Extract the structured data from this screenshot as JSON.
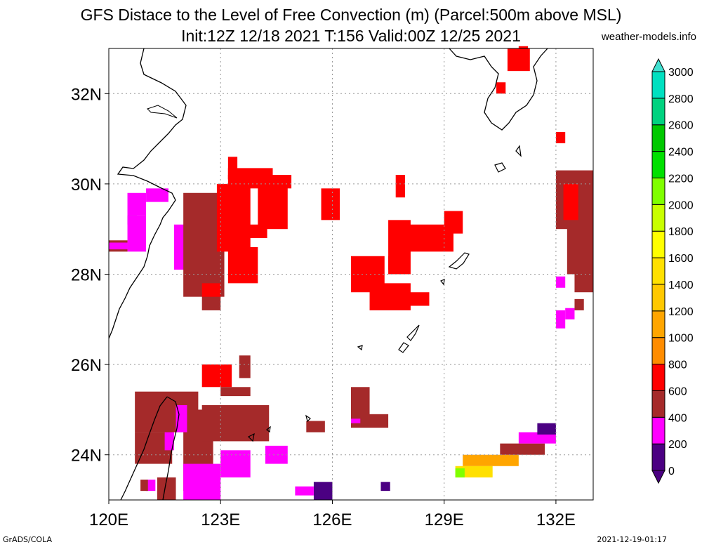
{
  "header": {
    "title_line1": "GFS Distace to the Level of Free Convection (m) (Parcel:500m above MSL)",
    "title_line2": "Init:12Z 12/18 2021 T:156 Valid:00Z 12/25 2021",
    "credit": "weather-models.info"
  },
  "footer": {
    "left": "GrADS/COLA",
    "right": "2021-12-19-01:17"
  },
  "map": {
    "lon_labels": [
      "120E",
      "123E",
      "126E",
      "129E",
      "132E"
    ],
    "lat_labels": [
      "32N",
      "30N",
      "28N",
      "26N",
      "24N"
    ],
    "coastline_color": "#000000",
    "grid_color": "#999999"
  },
  "colorbar": {
    "labels": [
      "0",
      "200",
      "400",
      "600",
      "800",
      "1000",
      "1200",
      "1400",
      "1600",
      "1800",
      "2000",
      "2200",
      "2400",
      "2600",
      "2800",
      "3000"
    ],
    "colors": [
      "#4b0082",
      "#ff00ff",
      "#a52a2a",
      "#ff0000",
      "#ff8c00",
      "#ffa500",
      "#ffc800",
      "#ffe000",
      "#ffff00",
      "#c8ff00",
      "#7fff00",
      "#00e000",
      "#00c800",
      "#00d27f",
      "#00e0c0",
      "#00ffe6"
    ],
    "top_arrow_color": "#40e0d0",
    "bottom_arrow_color": "#4b0082"
  },
  "field": {
    "cells": [
      {
        "lon": 121.0,
        "lat": 29.6,
        "w": 0.6,
        "h": 0.3,
        "v": "magenta"
      },
      {
        "lon": 120.5,
        "lat": 29.3,
        "w": 0.5,
        "h": 0.5,
        "v": "magenta"
      },
      {
        "lon": 120.5,
        "lat": 29.1,
        "w": 0.25,
        "h": 0.2,
        "v": "indigo"
      },
      {
        "lon": 120.5,
        "lat": 28.5,
        "w": 0.5,
        "h": 0.8,
        "v": "magenta"
      },
      {
        "lon": 120.0,
        "lat": 28.5,
        "w": 0.5,
        "h": 0.25,
        "v": "brown"
      },
      {
        "lon": 120.0,
        "lat": 28.55,
        "w": 0.5,
        "h": 0.15,
        "v": "magenta"
      },
      {
        "lon": 121.75,
        "lat": 28.1,
        "w": 0.6,
        "h": 1.0,
        "v": "magenta"
      },
      {
        "lon": 122.0,
        "lat": 27.5,
        "w": 1.1,
        "h": 2.3,
        "v": "brown"
      },
      {
        "lon": 122.5,
        "lat": 27.2,
        "w": 0.5,
        "h": 0.4,
        "v": "brown"
      },
      {
        "lon": 122.9,
        "lat": 28.5,
        "w": 0.9,
        "h": 1.5,
        "v": "red"
      },
      {
        "lon": 123.2,
        "lat": 27.8,
        "w": 0.8,
        "h": 0.8,
        "v": "red"
      },
      {
        "lon": 123.2,
        "lat": 29.9,
        "w": 1.7,
        "h": 0.3,
        "v": "red"
      },
      {
        "lon": 124.0,
        "lat": 29.0,
        "w": 0.8,
        "h": 1.0,
        "v": "red"
      },
      {
        "lon": 123.5,
        "lat": 28.8,
        "w": 0.75,
        "h": 0.3,
        "v": "red"
      },
      {
        "lon": 123.2,
        "lat": 30.1,
        "w": 1.2,
        "h": 0.25,
        "v": "red"
      },
      {
        "lon": 123.2,
        "lat": 30.1,
        "w": 0.25,
        "h": 0.5,
        "v": "red"
      },
      {
        "lon": 122.5,
        "lat": 27.5,
        "w": 0.5,
        "h": 0.3,
        "v": "red"
      },
      {
        "lon": 125.7,
        "lat": 29.2,
        "w": 0.5,
        "h": 0.7,
        "v": "red"
      },
      {
        "lon": 127.7,
        "lat": 29.7,
        "w": 0.25,
        "h": 0.5,
        "v": "red"
      },
      {
        "lon": 126.5,
        "lat": 27.6,
        "w": 0.9,
        "h": 0.8,
        "v": "red"
      },
      {
        "lon": 127.0,
        "lat": 27.2,
        "w": 1.1,
        "h": 0.6,
        "v": "red"
      },
      {
        "lon": 127.5,
        "lat": 28.0,
        "w": 0.6,
        "h": 1.2,
        "v": "red"
      },
      {
        "lon": 128.0,
        "lat": 27.3,
        "w": 0.6,
        "h": 0.3,
        "v": "red"
      },
      {
        "lon": 127.75,
        "lat": 28.5,
        "w": 1.5,
        "h": 0.6,
        "v": "red"
      },
      {
        "lon": 129.0,
        "lat": 28.9,
        "w": 0.5,
        "h": 0.5,
        "v": "red"
      },
      {
        "lon": 127.5,
        "lat": 28.1,
        "w": 0.25,
        "h": 0.3,
        "v": "red"
      },
      {
        "lon": 122.5,
        "lat": 25.5,
        "w": 0.8,
        "h": 0.5,
        "v": "red"
      },
      {
        "lon": 120.7,
        "lat": 24.5,
        "w": 1.7,
        "h": 0.9,
        "v": "brown"
      },
      {
        "lon": 120.7,
        "lat": 23.8,
        "w": 1.0,
        "h": 0.7,
        "v": "brown"
      },
      {
        "lon": 122.0,
        "lat": 23.2,
        "w": 0.8,
        "h": 1.8,
        "v": "brown"
      },
      {
        "lon": 122.5,
        "lat": 24.3,
        "w": 1.8,
        "h": 0.8,
        "v": "brown"
      },
      {
        "lon": 123.0,
        "lat": 25.3,
        "w": 0.8,
        "h": 0.2,
        "v": "brown"
      },
      {
        "lon": 123.5,
        "lat": 25.7,
        "w": 0.3,
        "h": 0.5,
        "v": "brown"
      },
      {
        "lon": 124.2,
        "lat": 23.8,
        "w": 0.6,
        "h": 0.4,
        "v": "magenta"
      },
      {
        "lon": 122.0,
        "lat": 23.0,
        "w": 1.0,
        "h": 0.8,
        "v": "magenta"
      },
      {
        "lon": 123.0,
        "lat": 23.5,
        "w": 0.8,
        "h": 0.6,
        "v": "magenta"
      },
      {
        "lon": 121.0,
        "lat": 23.2,
        "w": 0.25,
        "h": 0.25,
        "v": "magenta"
      },
      {
        "lon": 120.85,
        "lat": 23.2,
        "w": 0.2,
        "h": 0.25,
        "v": "brown"
      },
      {
        "lon": 121.3,
        "lat": 23.0,
        "w": 0.5,
        "h": 0.5,
        "v": "brown"
      },
      {
        "lon": 121.8,
        "lat": 24.5,
        "w": 0.3,
        "h": 0.6,
        "v": "magenta"
      },
      {
        "lon": 121.5,
        "lat": 24.1,
        "w": 0.25,
        "h": 0.4,
        "v": "magenta"
      },
      {
        "lon": 125.5,
        "lat": 23.0,
        "w": 0.5,
        "h": 0.4,
        "v": "indigo"
      },
      {
        "lon": 125.0,
        "lat": 23.1,
        "w": 0.5,
        "h": 0.2,
        "v": "magenta"
      },
      {
        "lon": 125.3,
        "lat": 24.5,
        "w": 0.5,
        "h": 0.25,
        "v": "brown"
      },
      {
        "lon": 126.5,
        "lat": 24.8,
        "w": 0.5,
        "h": 0.7,
        "v": "brown"
      },
      {
        "lon": 126.5,
        "lat": 24.6,
        "w": 1.0,
        "h": 0.3,
        "v": "brown"
      },
      {
        "lon": 126.5,
        "lat": 24.7,
        "w": 0.25,
        "h": 0.1,
        "v": "magenta"
      },
      {
        "lon": 127.3,
        "lat": 23.2,
        "w": 0.25,
        "h": 0.2,
        "v": "indigo"
      },
      {
        "lon": 129.3,
        "lat": 23.5,
        "w": 1.0,
        "h": 0.25,
        "v": "yellow"
      },
      {
        "lon": 129.5,
        "lat": 23.75,
        "w": 1.5,
        "h": 0.25,
        "v": "orange"
      },
      {
        "lon": 130.5,
        "lat": 24.0,
        "w": 1.2,
        "h": 0.25,
        "v": "brown"
      },
      {
        "lon": 131.0,
        "lat": 24.25,
        "w": 1.0,
        "h": 0.25,
        "v": "magenta"
      },
      {
        "lon": 131.5,
        "lat": 24.45,
        "w": 0.5,
        "h": 0.25,
        "v": "indigo"
      },
      {
        "lon": 129.3,
        "lat": 23.5,
        "w": 0.25,
        "h": 0.2,
        "v": "green"
      },
      {
        "lon": 130.7,
        "lat": 32.5,
        "w": 0.6,
        "h": 0.5,
        "v": "red"
      },
      {
        "lon": 131.0,
        "lat": 32.8,
        "w": 0.25,
        "h": 0.25,
        "v": "red"
      },
      {
        "lon": 130.4,
        "lat": 32.0,
        "w": 0.25,
        "h": 0.25,
        "v": "red"
      },
      {
        "lon": 132.0,
        "lat": 30.9,
        "w": 0.25,
        "h": 0.25,
        "v": "red"
      },
      {
        "lon": 132.0,
        "lat": 29.0,
        "w": 1.0,
        "h": 1.3,
        "v": "brown"
      },
      {
        "lon": 132.3,
        "lat": 28.0,
        "w": 0.7,
        "h": 1.2,
        "v": "brown"
      },
      {
        "lon": 132.5,
        "lat": 27.6,
        "w": 0.5,
        "h": 0.5,
        "v": "brown"
      },
      {
        "lon": 132.2,
        "lat": 29.2,
        "w": 0.4,
        "h": 0.8,
        "v": "red"
      },
      {
        "lon": 132.0,
        "lat": 27.7,
        "w": 0.25,
        "h": 0.25,
        "v": "magenta"
      },
      {
        "lon": 132.0,
        "lat": 26.8,
        "w": 0.25,
        "h": 0.4,
        "v": "magenta"
      },
      {
        "lon": 132.25,
        "lat": 27.0,
        "w": 0.25,
        "h": 0.25,
        "v": "magenta"
      },
      {
        "lon": 132.5,
        "lat": 27.2,
        "w": 0.25,
        "h": 0.25,
        "v": "brown"
      }
    ],
    "palette": {
      "indigo": "#4b0082",
      "magenta": "#ff00ff",
      "brown": "#a52a2a",
      "red": "#ff0000",
      "orange": "#ffa500",
      "yellow": "#ffe000",
      "green": "#7fff00"
    }
  }
}
